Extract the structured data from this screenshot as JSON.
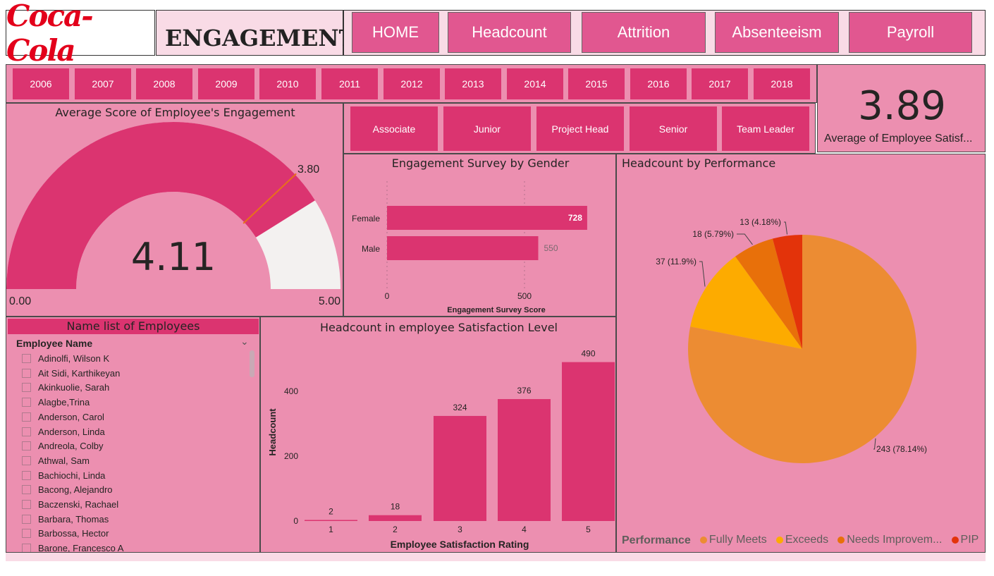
{
  "logo": {
    "text": "Coca-Cola"
  },
  "header": {
    "title": "ENGAGEMENT"
  },
  "nav": [
    {
      "label": "HOME"
    },
    {
      "label": "Headcount"
    },
    {
      "label": "Attrition"
    },
    {
      "label": "Absenteeism"
    },
    {
      "label": "Payroll"
    }
  ],
  "years": [
    "2006",
    "2007",
    "2008",
    "2009",
    "2010",
    "2011",
    "2012",
    "2013",
    "2014",
    "2015",
    "2016",
    "2017",
    "2018"
  ],
  "roles": [
    "Associate",
    "Junior",
    "Project Head",
    "Senior",
    "Team Leader"
  ],
  "kpi": {
    "value": "3.89",
    "label": "Average of Employee Satisf..."
  },
  "gauge": {
    "title": "Average Score of Employee's Engagement",
    "value": 4.11,
    "value_label": "4.11",
    "target": 3.8,
    "target_label": "3.80",
    "min": 0,
    "min_label": "0.00",
    "max": 5,
    "max_label": "5.00",
    "fill_color": "#db3470",
    "rest_color": "#f3f1f0",
    "target_color": "#e8701a"
  },
  "employees": {
    "title": "Name list of Employees",
    "header": "Employee Name",
    "names": [
      "Adinolfi, Wilson K",
      "Ait Sidi, Karthikeyan",
      "Akinkuolie, Sarah",
      "Alagbe,Trina",
      "Anderson, Carol",
      "Anderson, Linda",
      "Andreola, Colby",
      "Athwal, Sam",
      "Bachiochi, Linda",
      "Bacong, Alejandro",
      "Baczenski, Rachael",
      "Barbara, Thomas",
      "Barbossa, Hector",
      "Barone, Francesco A"
    ]
  },
  "chart_data": [
    {
      "type": "bar",
      "orientation": "horizontal",
      "title": "Engagement Survey by Gender",
      "categories": [
        "Female",
        "Male"
      ],
      "values": [
        728,
        550
      ],
      "value_labels": [
        "728",
        "550"
      ],
      "xlabel": "Engagement Survey Score",
      "xticks": [
        0,
        500
      ],
      "xtick_labels": [
        "0",
        "500"
      ],
      "xlim": [
        0,
        1000
      ],
      "color": "#db3470"
    },
    {
      "type": "bar",
      "title": "Headcount in employee Satisfaction Level",
      "categories": [
        "1",
        "2",
        "3",
        "4",
        "5"
      ],
      "values": [
        2,
        18,
        324,
        376,
        490
      ],
      "value_labels": [
        "2",
        "18",
        "324",
        "376",
        "490"
      ],
      "xlabel": "Employee Satisfaction Rating",
      "ylabel": "Headcount",
      "yticks": [
        0,
        200,
        400
      ],
      "ytick_labels": [
        "0",
        "200",
        "400"
      ],
      "ylim": [
        0,
        500
      ],
      "color": "#db3470"
    },
    {
      "type": "pie",
      "title": "Headcount by Performance",
      "legend_title": "Performance",
      "slices": [
        {
          "name": "Fully Meets",
          "value": 243,
          "label": "243 (78.14%)",
          "color": "#ec8c33"
        },
        {
          "name": "Exceeds",
          "value": 37,
          "label": "37 (11.9%)",
          "color": "#fdab00"
        },
        {
          "name": "Needs Improvem...",
          "value": 18,
          "label": "18 (5.79%)",
          "color": "#e8700a"
        },
        {
          "name": "PIP",
          "value": 13,
          "label": "13 (4.18%)",
          "color": "#e3330a"
        }
      ]
    }
  ]
}
